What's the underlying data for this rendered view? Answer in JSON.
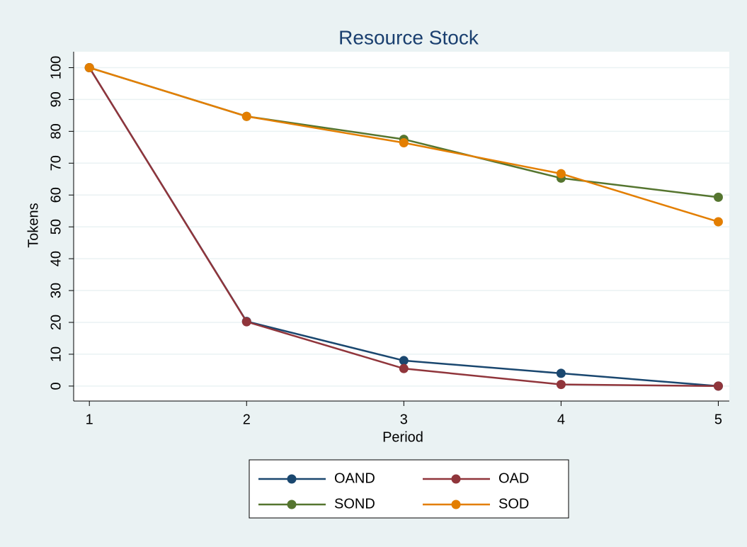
{
  "chart_data": {
    "type": "line",
    "title": "Resource Stock",
    "x_label": "Period",
    "y_label": "Tokens",
    "x": [
      1,
      2,
      3,
      4,
      5
    ],
    "series": [
      {
        "name": "OAND",
        "color": "#1a476f",
        "values": [
          100,
          20.3,
          8,
          4,
          0
        ]
      },
      {
        "name": "OAD",
        "color": "#90353b",
        "values": [
          100,
          20.2,
          5.5,
          0.5,
          0
        ]
      },
      {
        "name": "SOND",
        "color": "#55752f",
        "values": [
          100,
          84.7,
          77.5,
          65.3,
          59.3
        ]
      },
      {
        "name": "SOD",
        "color": "#e37e00",
        "values": [
          100,
          84.7,
          76.4,
          66.7,
          51.6
        ]
      }
    ],
    "xlim": [
      0.9,
      5.07
    ],
    "xticks": [
      1,
      2,
      3,
      4,
      5
    ],
    "ylim": [
      -4.7,
      105
    ],
    "yticks": [
      0,
      10,
      20,
      30,
      40,
      50,
      60,
      70,
      80,
      90,
      100
    ],
    "grid": true,
    "legend_position": "bottom"
  }
}
